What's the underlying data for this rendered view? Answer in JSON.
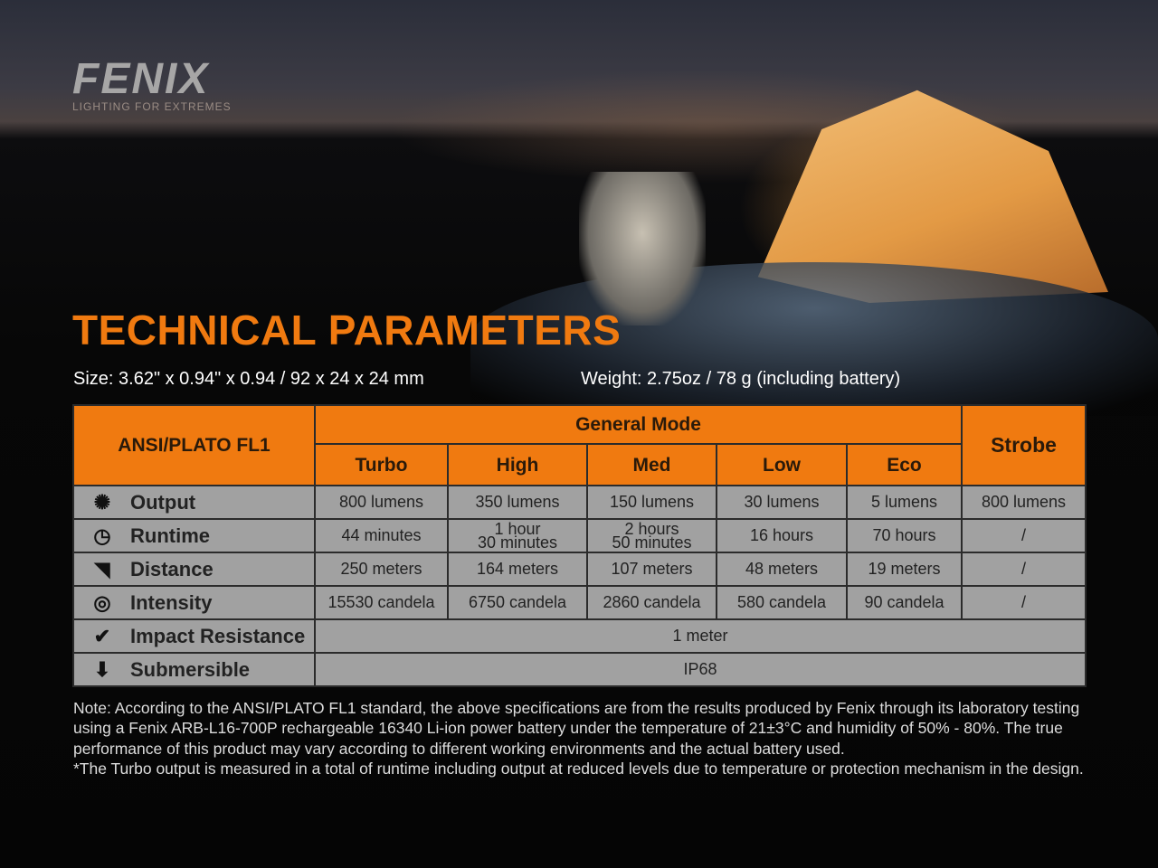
{
  "logo": {
    "name": "FENIX",
    "tagline": "LIGHTING FOR EXTREMES"
  },
  "title": "TECHNICAL PARAMETERS",
  "size": "Size: 3.62\" x 0.94\" x 0.94 / 92 x 24 x 24 mm",
  "weight": "Weight: 2.75oz / 78 g (including battery)",
  "table": {
    "corner": "ANSI/PLATO FL1",
    "group": "General Mode",
    "strobe": "Strobe",
    "modes": [
      "Turbo",
      "High",
      "Med",
      "Low",
      "Eco"
    ],
    "rows": [
      {
        "icon": "output-icon",
        "label": "Output",
        "values": [
          "800 lumens",
          "350 lumens",
          "150 lumens",
          "30 lumens",
          "5 lumens",
          "800 lumens"
        ]
      },
      {
        "icon": "clock-icon",
        "label": "Runtime",
        "values": [
          "44 minutes",
          "1 hour\n30 minutes",
          "2 hours\n50 minutes",
          "16 hours",
          "70 hours",
          "/"
        ]
      },
      {
        "icon": "distance-icon",
        "label": "Distance",
        "values": [
          "250 meters",
          "164 meters",
          "107 meters",
          "48 meters",
          "19 meters",
          "/"
        ]
      },
      {
        "icon": "target-icon",
        "label": "Intensity",
        "values": [
          "15530 candela",
          "6750 candela",
          "2860 candela",
          "580 candela",
          "90 candela",
          "/"
        ]
      },
      {
        "icon": "impact-icon",
        "label": "Impact Resistance",
        "value": "1 meter"
      },
      {
        "icon": "submersible-icon",
        "label": "Submersible",
        "value": "IP68"
      }
    ]
  },
  "note": [
    "Note: According to the ANSI/PLATO FL1 standard, the above specifications are from the results produced by Fenix through its laboratory testing using a Fenix ARB-L16-700P rechargeable 16340 Li-ion power battery under the temperature of 21±3°C and humidity of 50% - 80%. The true performance of this product may vary according to different working environments and the actual battery used.",
    "*The Turbo output is measured in a total of runtime including output at reduced levels due to temperature or protection mechanism in the design."
  ],
  "colors": {
    "accent": "#f07a10",
    "cell": "#a1a1a1"
  }
}
